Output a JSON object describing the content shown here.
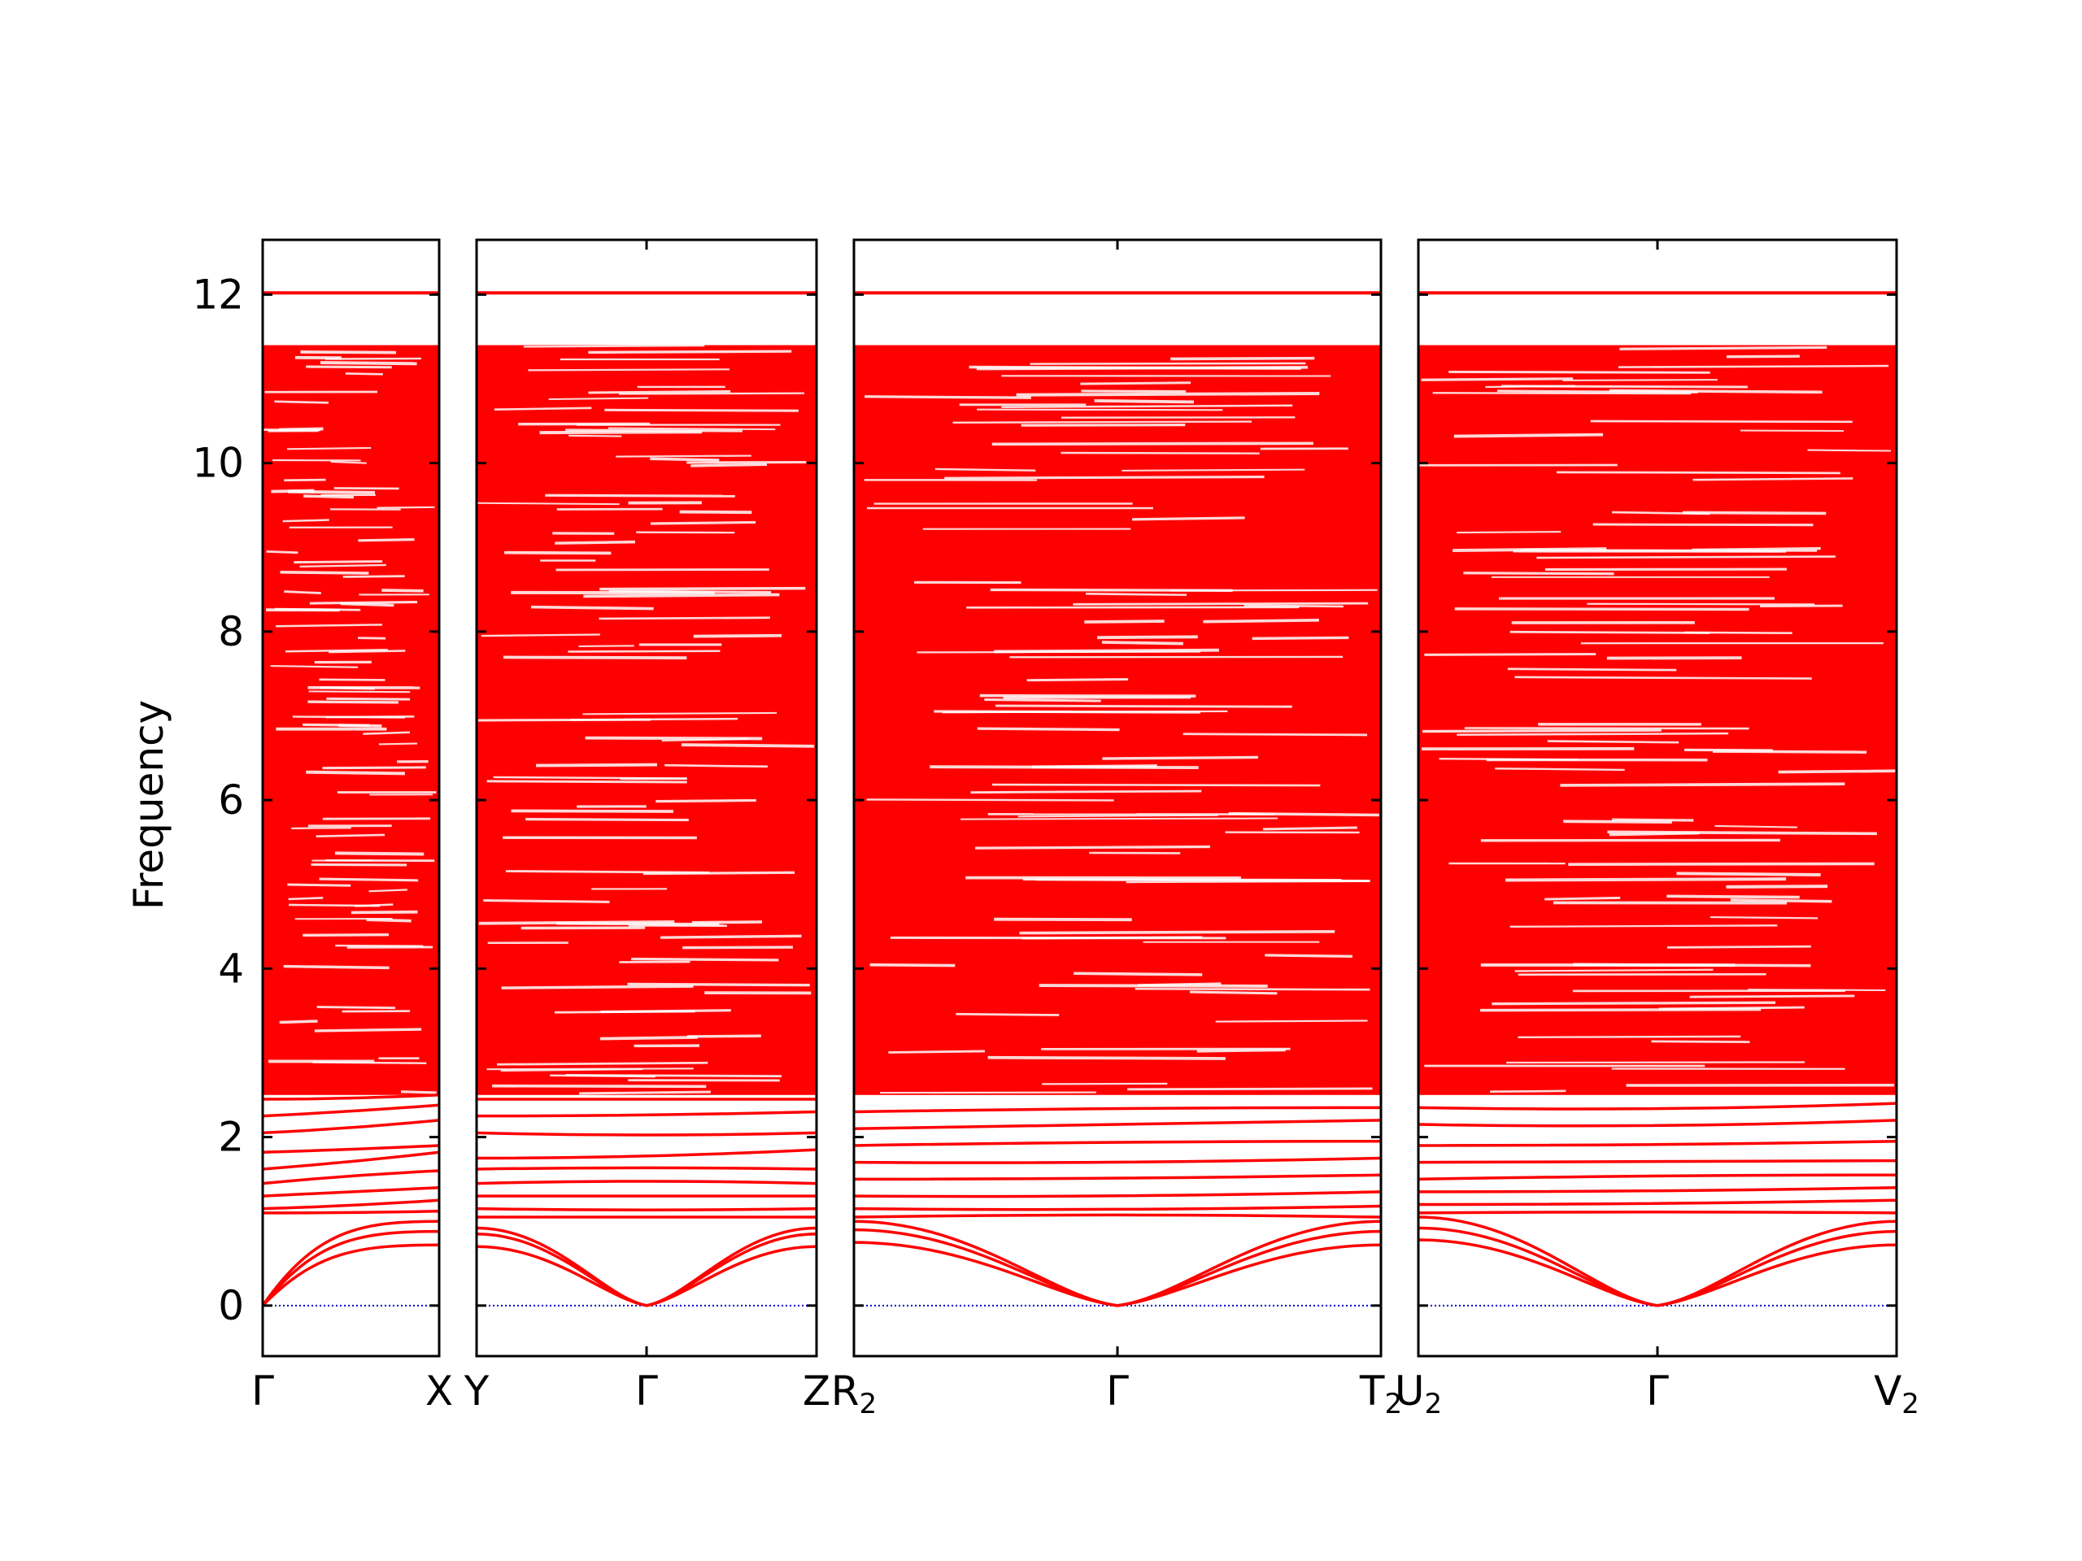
{
  "chart_data": {
    "type": "line",
    "title": "",
    "xlabel": "",
    "ylabel": "Frequency",
    "ylim": [
      -0.6,
      12.65
    ],
    "yticks": [
      0,
      2,
      4,
      6,
      8,
      10,
      12
    ],
    "ytick_labels": [
      "0",
      "2",
      "4",
      "6",
      "8",
      "10",
      "12"
    ],
    "grid": false,
    "legend": "none",
    "band_color": "#ff0000",
    "zero_line_color": "#0000cc",
    "panels": [
      {
        "path": [
          "Γ",
          "X"
        ],
        "xlim": [
          0,
          1
        ],
        "acoustic": [
          {
            "x": [
              0,
              0.5,
              1
            ],
            "y": [
              0,
              0.55,
              0.72
            ]
          },
          {
            "x": [
              0,
              0.5,
              1
            ],
            "y": [
              0,
              0.62,
              0.88
            ]
          },
          {
            "x": [
              0,
              0.5,
              1
            ],
            "y": [
              0,
              1.0,
              1.0
            ]
          }
        ],
        "optical": [
          {
            "x": [
              0,
              0.5,
              1
            ],
            "y": [
              1.1,
              1.1,
              1.12
            ]
          },
          {
            "x": [
              0,
              0.5,
              1
            ],
            "y": [
              1.15,
              1.18,
              1.25
            ]
          },
          {
            "x": [
              0,
              0.5,
              1
            ],
            "y": [
              1.3,
              1.35,
              1.4
            ]
          },
          {
            "x": [
              0,
              0.5,
              1
            ],
            "y": [
              1.45,
              1.55,
              1.6
            ]
          },
          {
            "x": [
              0,
              0.5,
              1
            ],
            "y": [
              1.62,
              1.7,
              1.82
            ]
          },
          {
            "x": [
              0,
              0.5,
              1
            ],
            "y": [
              1.82,
              1.85,
              1.9
            ]
          },
          {
            "x": [
              0,
              0.5,
              1
            ],
            "y": [
              2.05,
              2.1,
              2.2
            ]
          },
          {
            "x": [
              0,
              0.5,
              1
            ],
            "y": [
              2.25,
              2.3,
              2.38
            ]
          },
          {
            "x": [
              0,
              0.5,
              1
            ],
            "y": [
              2.45,
              2.45,
              2.5
            ]
          }
        ],
        "flat_top": {
          "x": [
            0,
            1
          ],
          "y": [
            12.02,
            12.02
          ]
        }
      },
      {
        "path": [
          "Y",
          "Γ",
          "Z"
        ],
        "xlim": [
          0,
          2
        ],
        "acoustic": [
          {
            "x": [
              0,
              1,
              2
            ],
            "y": [
              0.7,
              0,
              0.7
            ]
          },
          {
            "x": [
              0,
              1,
              2
            ],
            "y": [
              0.85,
              0,
              0.85
            ]
          },
          {
            "x": [
              0,
              1,
              2
            ],
            "y": [
              0.92,
              0,
              0.92
            ]
          }
        ],
        "optical": [
          {
            "x": [
              0,
              1,
              2
            ],
            "y": [
              1.05,
              1.05,
              1.05
            ]
          },
          {
            "x": [
              0,
              1,
              2
            ],
            "y": [
              1.15,
              1.12,
              1.15
            ]
          },
          {
            "x": [
              0,
              1,
              2
            ],
            "y": [
              1.3,
              1.3,
              1.3
            ]
          },
          {
            "x": [
              0,
              1,
              2
            ],
            "y": [
              1.45,
              1.5,
              1.45
            ]
          },
          {
            "x": [
              0,
              1,
              2
            ],
            "y": [
              1.62,
              1.65,
              1.62
            ]
          },
          {
            "x": [
              0,
              1,
              2
            ],
            "y": [
              1.75,
              1.75,
              1.85
            ]
          },
          {
            "x": [
              0,
              1,
              2
            ],
            "y": [
              2.05,
              2.0,
              2.05
            ]
          },
          {
            "x": [
              0,
              1,
              2
            ],
            "y": [
              2.25,
              2.25,
              2.3
            ]
          },
          {
            "x": [
              0,
              1,
              2
            ],
            "y": [
              2.45,
              2.45,
              2.45
            ]
          }
        ],
        "flat_top": {
          "x": [
            0,
            2
          ],
          "y": [
            12.02,
            12.02
          ]
        }
      },
      {
        "path": [
          "R2",
          "Γ",
          "T2"
        ],
        "xlim": [
          0,
          2
        ],
        "acoustic": [
          {
            "x": [
              0,
              1,
              2
            ],
            "y": [
              0.75,
              0,
              0.72
            ]
          },
          {
            "x": [
              0,
              1,
              2
            ],
            "y": [
              0.9,
              0,
              0.88
            ]
          },
          {
            "x": [
              0,
              1,
              2
            ],
            "y": [
              1.0,
              0,
              1.0
            ]
          }
        ],
        "optical": [
          {
            "x": [
              0,
              1,
              2
            ],
            "y": [
              1.05,
              1.1,
              1.05
            ]
          },
          {
            "x": [
              0,
              1,
              2
            ],
            "y": [
              1.15,
              1.12,
              1.18
            ]
          },
          {
            "x": [
              0,
              1,
              2
            ],
            "y": [
              1.3,
              1.28,
              1.35
            ]
          },
          {
            "x": [
              0,
              1,
              2
            ],
            "y": [
              1.5,
              1.5,
              1.55
            ]
          },
          {
            "x": [
              0,
              1,
              2
            ],
            "y": [
              1.7,
              1.68,
              1.75
            ]
          },
          {
            "x": [
              0,
              1,
              2
            ],
            "y": [
              1.9,
              1.95,
              1.95
            ]
          },
          {
            "x": [
              0,
              1,
              2
            ],
            "y": [
              2.1,
              2.15,
              2.2
            ]
          },
          {
            "x": [
              0,
              1,
              2
            ],
            "y": [
              2.3,
              2.35,
              2.35
            ]
          },
          {
            "x": [
              0,
              1,
              2
            ],
            "y": [
              2.75,
              2.8,
              2.75
            ]
          }
        ],
        "flat_top": {
          "x": [
            0,
            2
          ],
          "y": [
            12.02,
            12.02
          ]
        }
      },
      {
        "path": [
          "U2",
          "Γ",
          "V2"
        ],
        "xlim": [
          0,
          2
        ],
        "acoustic": [
          {
            "x": [
              0,
              1,
              2
            ],
            "y": [
              0.78,
              0,
              0.72
            ]
          },
          {
            "x": [
              0,
              1,
              2
            ],
            "y": [
              0.92,
              0,
              0.88
            ]
          },
          {
            "x": [
              0,
              1,
              2
            ],
            "y": [
              1.05,
              0,
              1.0
            ]
          }
        ],
        "optical": [
          {
            "x": [
              0,
              1,
              2
            ],
            "y": [
              1.1,
              1.12,
              1.1
            ]
          },
          {
            "x": [
              0,
              1,
              2
            ],
            "y": [
              1.2,
              1.2,
              1.25
            ]
          },
          {
            "x": [
              0,
              1,
              2
            ],
            "y": [
              1.35,
              1.35,
              1.4
            ]
          },
          {
            "x": [
              0,
              1,
              2
            ],
            "y": [
              1.5,
              1.55,
              1.55
            ]
          },
          {
            "x": [
              0,
              1,
              2
            ],
            "y": [
              1.7,
              1.7,
              1.72
            ]
          },
          {
            "x": [
              0,
              1,
              2
            ],
            "y": [
              1.9,
              1.9,
              1.95
            ]
          },
          {
            "x": [
              0,
              1,
              2
            ],
            "y": [
              2.15,
              2.1,
              2.2
            ]
          },
          {
            "x": [
              0,
              1,
              2
            ],
            "y": [
              2.35,
              2.3,
              2.4
            ]
          }
        ],
        "flat_top": {
          "x": [
            0,
            2
          ],
          "y": [
            12.02,
            12.02
          ]
        }
      }
    ],
    "dense_band_region": {
      "from": 2.5,
      "to": 11.4,
      "note_color": "#ff0000"
    }
  }
}
